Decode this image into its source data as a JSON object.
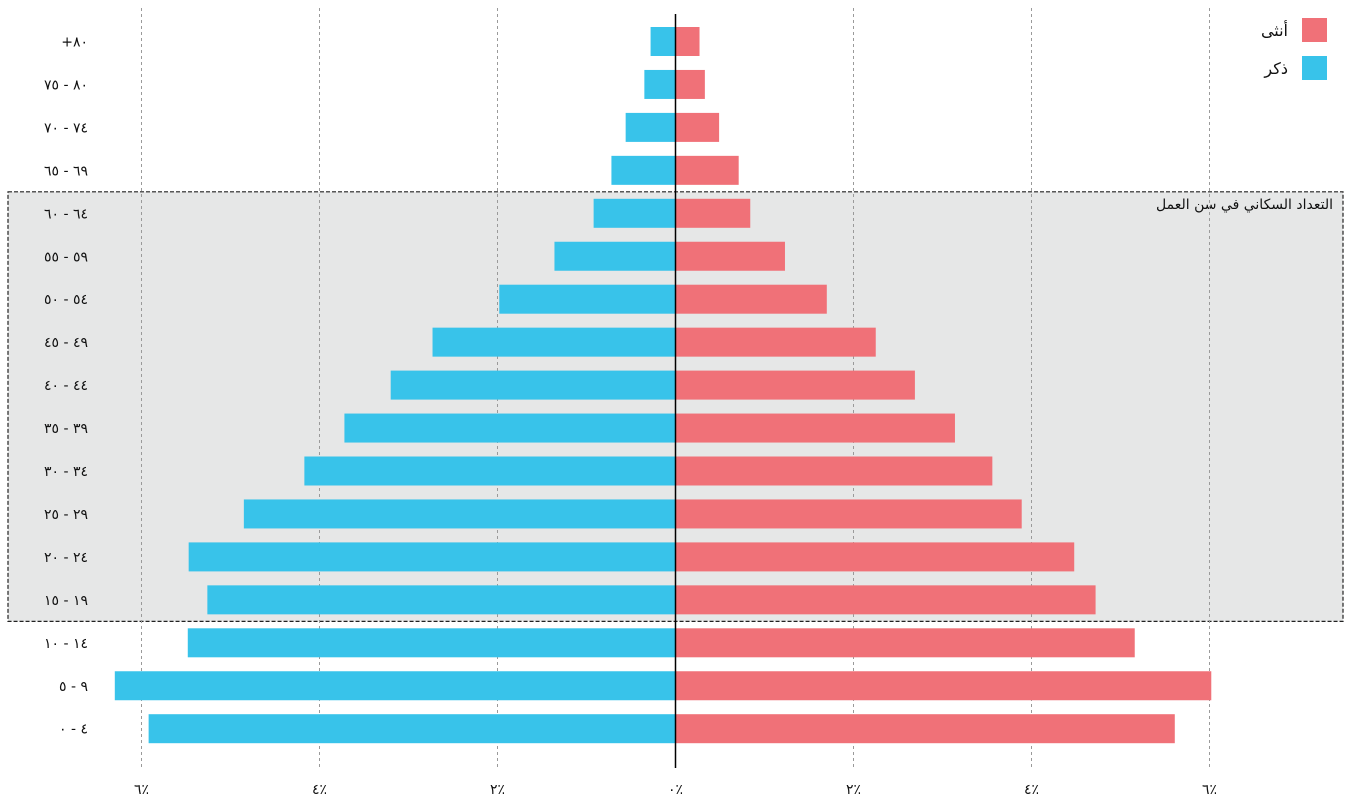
{
  "chart_data": {
    "type": "bar",
    "orientation": "horizontal",
    "categories": [
      "+٨٠",
      "٨٠ - ٧٥",
      "٧٤ - ٧٠",
      "٦٩ - ٦٥",
      "٦٤ - ٦٠",
      "٥٩ - ٥٥",
      "٥٤ - ٥٠",
      "٤٩ - ٤٥",
      "٤٤ - ٤٠",
      "٣٩ - ٣٥",
      "٣٤ - ٣٠",
      "٢٩ - ٢٥",
      "٢٤ - ٢٠",
      "١٩ - ١٥",
      "١٤ - ١٠",
      "٩ - ٥",
      "٤ - ٠"
    ],
    "series": [
      {
        "name": "أنثى",
        "color": "#f07178",
        "values": [
          0.27,
          0.33,
          0.49,
          0.71,
          0.84,
          1.23,
          1.7,
          2.25,
          2.69,
          3.14,
          3.56,
          3.89,
          4.48,
          4.72,
          5.16,
          6.02,
          5.61
        ]
      },
      {
        "name": "ذكر",
        "color": "#38c3ea",
        "values": [
          0.28,
          0.35,
          0.56,
          0.72,
          0.92,
          1.36,
          1.98,
          2.73,
          3.2,
          3.72,
          4.17,
          4.85,
          5.47,
          5.26,
          5.48,
          6.3,
          5.92
        ]
      }
    ],
    "xlim": [
      -6.2,
      6.2
    ],
    "x_ticks": [
      -6,
      -4,
      -2,
      0,
      2,
      4,
      6
    ],
    "x_tick_labels": [
      "٦٪",
      "٤٪",
      "٢٪",
      "٠٪",
      "٢٪",
      "٤٪",
      "٦٪"
    ],
    "grid": true,
    "legend_position": "top-right",
    "highlight": {
      "label": "التعداد السكاني في سن العمل",
      "from_category": "٦٤ - ٦٠",
      "to_category": "١٩ - ١٥"
    }
  }
}
